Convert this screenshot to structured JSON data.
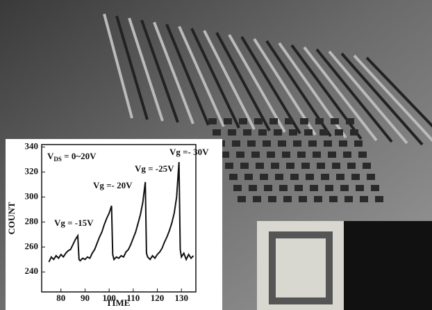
{
  "chart_data": {
    "type": "line",
    "x_label": "TIME",
    "y_label": "COUNT",
    "x": [
      75,
      76,
      77,
      78,
      79,
      80,
      81,
      82,
      83,
      84,
      85,
      86,
      87,
      87.5,
      88,
      89,
      90,
      91,
      92,
      93,
      94,
      95,
      96,
      97,
      98,
      99,
      100,
      101,
      101.5,
      102,
      103,
      104,
      105,
      106,
      107,
      108,
      109,
      110,
      111,
      112,
      113,
      114,
      115,
      115.5,
      116,
      117,
      118,
      119,
      120,
      121,
      122,
      123,
      124,
      125,
      126,
      127,
      128,
      129,
      129.5,
      130,
      131,
      132,
      133,
      134,
      135
    ],
    "values": [
      248,
      252,
      250,
      253,
      251,
      254,
      252,
      255,
      257,
      258,
      262,
      266,
      269,
      250,
      249,
      251,
      250,
      252,
      251,
      255,
      258,
      263,
      268,
      272,
      278,
      283,
      287,
      293,
      254,
      250,
      252,
      251,
      253,
      252,
      256,
      258,
      262,
      267,
      272,
      279,
      286,
      296,
      312,
      255,
      252,
      250,
      253,
      251,
      254,
      256,
      259,
      264,
      268,
      273,
      279,
      287,
      300,
      328,
      258,
      252,
      255,
      250,
      254,
      251,
      253
    ],
    "color": "#111111",
    "xlim": [
      72,
      136
    ],
    "ylim": [
      224,
      342
    ],
    "xticks": [
      80,
      90,
      100,
      110,
      120,
      130
    ],
    "yticks": [
      240,
      260,
      280,
      300,
      320,
      340
    ],
    "annotations": [
      "Vg = -15V",
      "Vg =- 20V",
      "Vg = -25V",
      "Vg =- 30V"
    ],
    "vds": {
      "main": "V",
      "sub": "DS",
      "rest": " = 0~20V"
    }
  }
}
